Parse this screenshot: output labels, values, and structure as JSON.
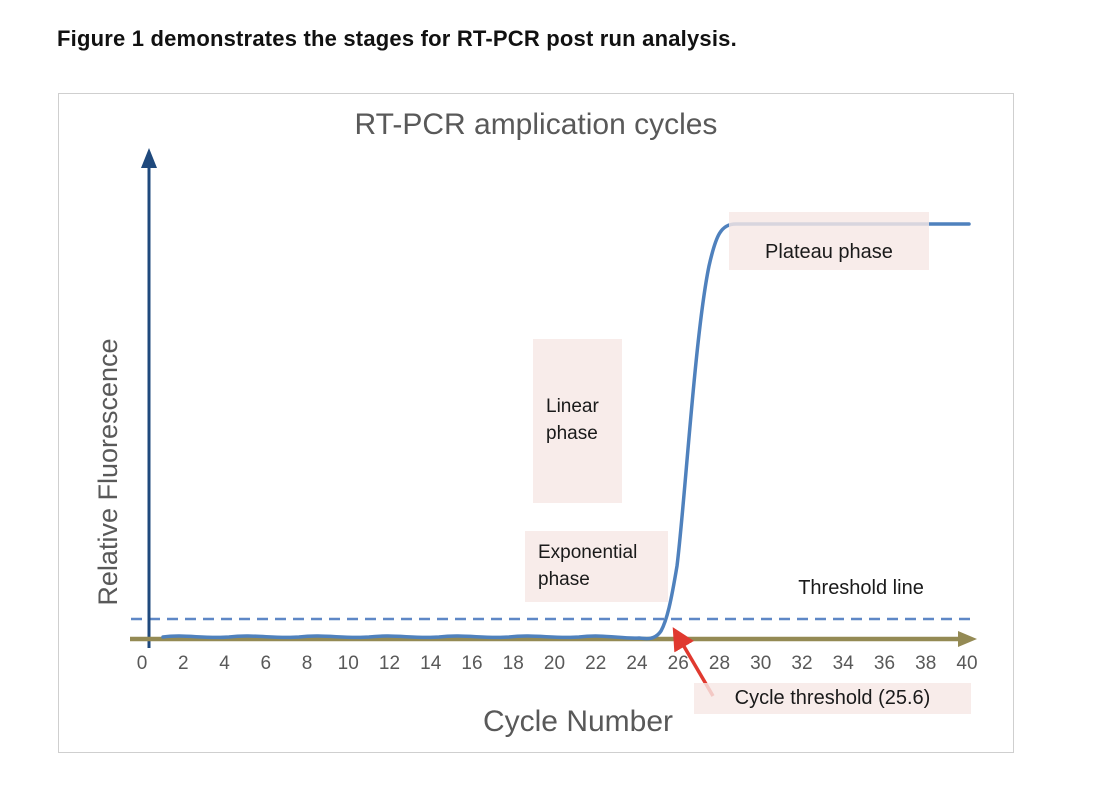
{
  "page": {
    "heading": "Figure 1 demonstrates the stages for RT-PCR post run analysis."
  },
  "chart_data": {
    "type": "line",
    "title": "RT-PCR amplication cycles",
    "xlabel": "Cycle Number",
    "ylabel": "Relative Fluorescence",
    "xlim": [
      0,
      40
    ],
    "x_ticks": [
      0,
      2,
      4,
      6,
      8,
      10,
      12,
      14,
      16,
      18,
      20,
      22,
      24,
      26,
      28,
      30,
      32,
      34,
      36,
      38,
      40
    ],
    "y_scale": "relative, unlabeled axis (0 to plateau)",
    "grid": false,
    "series": [
      {
        "name": "amplification-curve",
        "color": "#4f81bd",
        "x": [
          0,
          2,
          4,
          6,
          8,
          10,
          12,
          14,
          16,
          18,
          20,
          22,
          24,
          25,
          25.6,
          26,
          27,
          28,
          29,
          30,
          32,
          34,
          36,
          38,
          40
        ],
        "y": [
          0.02,
          0.02,
          0.02,
          0.02,
          0.02,
          0.02,
          0.02,
          0.02,
          0.02,
          0.02,
          0.02,
          0.02,
          0.02,
          0.04,
          0.08,
          0.22,
          0.62,
          0.93,
          0.99,
          1.0,
          1.0,
          1.0,
          1.0,
          1.0,
          1.0
        ]
      }
    ],
    "threshold": {
      "label": "Threshold line",
      "style": "dashed",
      "color": "#5e87c6",
      "y_relative": 0.08
    },
    "cycle_threshold": {
      "label": "Cycle threshold (25.6)",
      "value": 25.6,
      "arrow_color": "#e0392f"
    },
    "annotations": [
      {
        "label": "Plateau phase"
      },
      {
        "label": "Linear phase"
      },
      {
        "label": "Exponential phase"
      }
    ],
    "colors": {
      "curve": "#4f81bd",
      "threshold_line": "#5e87c6",
      "x_axis": "#948a54",
      "y_axis": "#1f497d",
      "annotation_box": "#f7e8e5",
      "axis_text": "#595959",
      "title_text": "#595959",
      "frame_border": "#cfcfcf"
    }
  }
}
